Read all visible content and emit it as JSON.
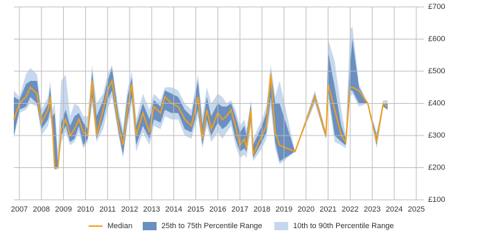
{
  "chart_data": {
    "type": "band-line",
    "x": [
      2006.75,
      2007.0,
      2007.3,
      2007.5,
      2007.8,
      2008.0,
      2008.3,
      2008.4,
      2008.5,
      2008.6,
      2008.75,
      2008.9,
      2009.1,
      2009.3,
      2009.5,
      2009.7,
      2009.9,
      2010.1,
      2010.3,
      2010.5,
      2010.8,
      2011.0,
      2011.2,
      2011.5,
      2011.7,
      2011.9,
      2012.1,
      2012.3,
      2012.6,
      2012.9,
      2013.1,
      2013.4,
      2013.6,
      2013.9,
      2014.2,
      2014.5,
      2014.8,
      2015.1,
      2015.3,
      2015.5,
      2015.7,
      2016.0,
      2016.2,
      2016.4,
      2016.6,
      2016.8,
      2017.0,
      2017.2,
      2017.3,
      2017.5,
      2017.6,
      2018.0,
      2018.2,
      2018.4,
      2018.6,
      2018.8,
      2019.5,
      2020.4,
      2020.9,
      2021.0,
      2021.3,
      2021.6,
      2021.8,
      2022.0,
      2022.1,
      2022.4,
      2022.8,
      2023.2,
      2023.5,
      2023.7
    ],
    "series": [
      {
        "name": "10th to 90th Percentile Range",
        "color": "#c5d8ed",
        "lower": [
          290,
          370,
          380,
          400,
          390,
          300,
          330,
          360,
          300,
          195,
          195,
          280,
          310,
          270,
          280,
          310,
          260,
          280,
          400,
          280,
          320,
          380,
          420,
          300,
          230,
          330,
          400,
          250,
          310,
          270,
          330,
          320,
          360,
          350,
          350,
          300,
          290,
          360,
          260,
          330,
          280,
          310,
          290,
          310,
          330,
          270,
          230,
          240,
          230,
          330,
          220,
          260,
          290,
          390,
          260,
          210,
          250,
          400,
          290,
          420,
          280,
          270,
          260,
          420,
          430,
          390,
          400,
          260,
          390,
          380
        ],
        "upper": [
          440,
          420,
          490,
          510,
          490,
          380,
          420,
          470,
          380,
          400,
          250,
          470,
          490,
          360,
          400,
          390,
          360,
          360,
          520,
          400,
          430,
          490,
          520,
          380,
          320,
          440,
          500,
          350,
          430,
          380,
          430,
          410,
          450,
          450,
          440,
          400,
          380,
          490,
          360,
          450,
          400,
          430,
          420,
          400,
          410,
          380,
          330,
          350,
          320,
          410,
          290,
          350,
          390,
          520,
          420,
          470,
          250,
          440,
          310,
          600,
          530,
          380,
          300,
          630,
          640,
          460,
          400,
          310,
          410,
          410
        ]
      },
      {
        "name": "25th to 75th Percentile Range",
        "color": "#6a8fc0",
        "lower": [
          300,
          380,
          390,
          420,
          400,
          320,
          350,
          380,
          310,
          195,
          200,
          300,
          330,
          280,
          290,
          330,
          270,
          290,
          420,
          290,
          350,
          410,
          440,
          310,
          240,
          350,
          420,
          270,
          330,
          290,
          350,
          340,
          380,
          370,
          370,
          320,
          310,
          380,
          270,
          350,
          300,
          340,
          320,
          330,
          350,
          290,
          250,
          260,
          250,
          350,
          230,
          280,
          310,
          420,
          280,
          220,
          250,
          410,
          290,
          440,
          300,
          280,
          270,
          440,
          440,
          400,
          400,
          270,
          390,
          380
        ],
        "upper": [
          420,
          410,
          460,
          470,
          470,
          360,
          400,
          450,
          360,
          370,
          210,
          340,
          380,
          330,
          360,
          370,
          340,
          320,
          500,
          360,
          410,
          470,
          510,
          360,
          300,
          420,
          480,
          330,
          400,
          350,
          410,
          390,
          440,
          430,
          420,
          380,
          360,
          470,
          330,
          420,
          360,
          400,
          390,
          390,
          400,
          360,
          310,
          330,
          300,
          400,
          270,
          330,
          370,
          500,
          400,
          400,
          250,
          430,
          310,
          560,
          450,
          330,
          290,
          520,
          600,
          450,
          400,
          300,
          400,
          400
        ]
      },
      {
        "name": "Median",
        "color": "#f0a01c",
        "values": [
          350,
          400,
          420,
          450,
          430,
          340,
          380,
          420,
          330,
          200,
          200,
          320,
          350,
          300,
          320,
          350,
          310,
          300,
          470,
          300,
          380,
          440,
          470,
          330,
          270,
          380,
          460,
          300,
          370,
          310,
          390,
          370,
          420,
          400,
          390,
          350,
          330,
          420,
          290,
          380,
          320,
          370,
          350,
          360,
          380,
          330,
          270,
          290,
          260,
          380,
          240,
          300,
          330,
          490,
          310,
          270,
          250,
          420,
          300,
          460,
          380,
          300,
          280,
          450,
          450,
          440,
          400,
          280,
          400,
          390
        ]
      }
    ],
    "xlim": [
      2006.75,
      2025.35
    ],
    "xticks": [
      2007,
      2008,
      2009,
      2010,
      2011,
      2012,
      2013,
      2014,
      2015,
      2016,
      2017,
      2018,
      2019,
      2020,
      2021,
      2022,
      2023,
      2024,
      2025
    ],
    "ylim": [
      100,
      700
    ],
    "yticks": [
      {
        "value": 100,
        "label": "£100"
      },
      {
        "value": 200,
        "label": "£200"
      },
      {
        "value": 300,
        "label": "£300"
      },
      {
        "value": 400,
        "label": "£400"
      },
      {
        "value": 500,
        "label": "£500"
      },
      {
        "value": 600,
        "label": "£600"
      },
      {
        "value": 700,
        "label": "£700"
      }
    ],
    "grid": true
  }
}
